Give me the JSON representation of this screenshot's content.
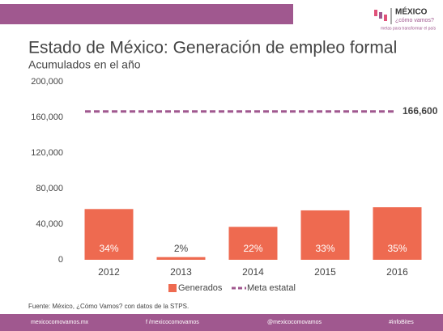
{
  "chart_data": {
    "type": "bar",
    "title": "Estado de México: Generación de empleo formal",
    "subtitle": "Acumulados en el año",
    "categories": [
      "2012",
      "2013",
      "2014",
      "2015",
      "2016"
    ],
    "series": [
      {
        "name": "Generados",
        "color": "#ee6a50",
        "values": [
          57000,
          3000,
          37000,
          55500,
          59000
        ]
      }
    ],
    "bar_annotations": [
      "34%",
      "2%",
      "22%",
      "33%",
      "35%"
    ],
    "target": {
      "name": "Meta estatal",
      "value": 166600,
      "label": "166,600",
      "color": "#a0588f"
    },
    "ylim": [
      0,
      200000
    ],
    "yticks": [
      0,
      {
        "value": 40000,
        "label": "40,000"
      },
      {
        "value": 80000,
        "label": "80,000"
      },
      {
        "value": 120000,
        "label": "120,000"
      },
      {
        "value": 160000,
        "label": "160,000"
      },
      {
        "value": 200000,
        "label": "200,000"
      }
    ],
    "source": "Fuente: México, ¿Cómo Vamos? con datos de la STPS.",
    "logo": {
      "name": "MÉXICO",
      "tagline": "¿cómo vamos?",
      "motto": "metas para transformar el país"
    },
    "footer": [
      "mexicocomovamos.mx",
      "f /mexicocomovamos",
      "@mexicocomovamos",
      "#infoBites"
    ]
  }
}
